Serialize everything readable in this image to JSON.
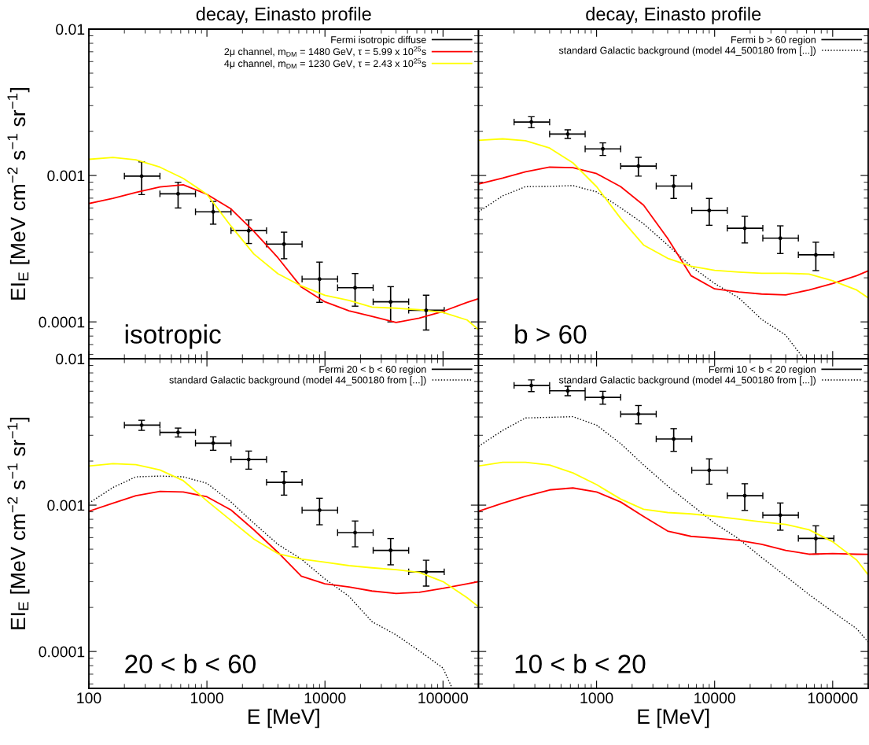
{
  "chart_data": [
    {
      "type": "line",
      "title": "decay, Einasto profile",
      "ylabel": "EI$_{E}$ [MeV cm$^{−2}$ s$^{−1}$ sr$^{−1}$]",
      "annotations": [
        "isotropic"
      ],
      "log": "xy",
      "legend": "top right",
      "tick_labels": "y",
      "xlim": [
        100,
        200000
      ],
      "ylim": [
        5.6e-05,
        0.01
      ],
      "xticks": [
        100,
        1000,
        10000,
        100000
      ],
      "yticks": [
        0.0001,
        0.001,
        0.01
      ],
      "series": [
        {
          "name": "Fermi isotropic diffuse",
          "type": "scatter",
          "color": "#000000",
          "marker": "circle",
          "x": [
            280,
            570,
            1130,
            2260,
            4500,
            9000,
            18000,
            36000,
            72000
          ],
          "values": [
            0.00099,
            0.00075,
            0.000565,
            0.00042,
            0.00034,
            0.000196,
            0.000171,
            0.000137,
            0.00012
          ],
          "errors": [
            0.00025,
            0.00015,
            0.0001,
            7.7e-05,
            7e-05,
            6e-05,
            4.3e-05,
            3.7e-05,
            3.2e-05
          ],
          "xerrors": [
            [
              200,
              400
            ],
            [
              400,
              800
            ],
            [
              800,
              1600
            ],
            [
              1600,
              3200
            ],
            [
              3200,
              6400
            ],
            [
              6400,
              12800
            ],
            [
              12800,
              25600
            ],
            [
              25600,
              51200
            ],
            [
              51200,
              102400
            ]
          ]
        },
        {
          "name": "2μ channel, m$_{DM}$ = 1480 GeV, τ = 5.99 x 10$^{25}$s",
          "color": "#ff0000",
          "x": [
            100,
            160,
            250,
            400,
            630,
            1000,
            1600,
            2500,
            4000,
            6300,
            10000,
            16000,
            25000,
            40000,
            63000,
            100000,
            160000,
            200000
          ],
          "values": [
            0.000643,
            0.000699,
            0.000766,
            0.000836,
            0.000865,
            0.000744,
            0.000591,
            0.000415,
            0.000274,
            0.000173,
            0.000137,
            0.000119,
            0.000109,
            9.9e-05,
            0.000106,
            0.000118,
            0.000136,
            0.000144
          ]
        },
        {
          "name": "4μ channel, m$_{DM}$ = 1230 GeV, τ = 2.43 x 10$^{25}$s",
          "color": "#ffff00",
          "x": [
            100,
            160,
            250,
            400,
            630,
            1000,
            1600,
            2500,
            4000,
            6300,
            10000,
            16000,
            25000,
            40000,
            63000,
            100000,
            160000,
            200000
          ],
          "values": [
            0.00129,
            0.00133,
            0.00128,
            0.00114,
            0.000955,
            0.000744,
            0.000451,
            0.000291,
            0.000213,
            0.000176,
            0.000152,
            0.00014,
            0.000126,
            0.000124,
            0.000121,
            0.000116,
            0.000103,
            8.85e-05
          ]
        }
      ]
    },
    {
      "type": "line",
      "title": "decay, Einasto profile",
      "annotations": [
        "b > 60"
      ],
      "log": "xy",
      "legend": "top right",
      "tick_labels": false,
      "xlim": [
        100,
        200000
      ],
      "ylim": [
        5.6e-05,
        0.01
      ],
      "xticks": [
        100,
        1000,
        10000,
        100000
      ],
      "yticks": [
        0.0001,
        0.001,
        0.01
      ],
      "series": [
        {
          "name": "Fermi b > 60 region",
          "type": "scatter",
          "color": "#000000",
          "marker": "circle",
          "x": [
            280,
            570,
            1130,
            2260,
            4500,
            9000,
            18000,
            36000,
            72000
          ],
          "values": [
            0.00232,
            0.00192,
            0.00152,
            0.00116,
            0.000847,
            0.000577,
            0.000436,
            0.000373,
            0.000287
          ],
          "errors": [
            0.0002,
            0.00013,
            0.00015,
            0.00017,
            0.00015,
            0.00012,
            9e-05,
            8e-05,
            6.3e-05
          ],
          "xerrors": [
            [
              200,
              400
            ],
            [
              400,
              800
            ],
            [
              800,
              1600
            ],
            [
              1600,
              3200
            ],
            [
              3200,
              6400
            ],
            [
              6400,
              12800
            ],
            [
              12800,
              25600
            ],
            [
              25600,
              51200
            ],
            [
              51200,
              102400
            ]
          ]
        },
        {
          "name": "standard Galactic background (model 44_500180 from [...])",
          "color": "#000000",
          "line_style": "dotted",
          "x": [
            100,
            160,
            250,
            400,
            630,
            1000,
            1600,
            2500,
            4000,
            6300,
            10000,
            16000,
            25000,
            40000,
            56000
          ],
          "values": [
            0.000565,
            0.000726,
            0.000839,
            0.000843,
            0.000853,
            0.000773,
            0.000601,
            0.000468,
            0.000335,
            0.00024,
            0.000183,
            0.000146,
            0.000104,
            8.11e-05,
            5.7e-05
          ]
        },
        {
          "color": "#ff0000",
          "x": [
            100,
            160,
            250,
            400,
            630,
            1000,
            1600,
            2500,
            4000,
            6300,
            10000,
            16000,
            25000,
            40000,
            63000,
            100000,
            160000,
            200000
          ],
          "values": [
            0.000875,
            0.000959,
            0.00106,
            0.00114,
            0.00113,
            0.00103,
            0.000839,
            0.000627,
            0.000372,
            0.000207,
            0.000168,
            0.00016,
            0.000155,
            0.000153,
            0.000165,
            0.000183,
            0.000207,
            0.000223
          ]
        },
        {
          "color": "#ffff00",
          "x": [
            100,
            160,
            250,
            400,
            630,
            1000,
            1600,
            2500,
            4000,
            6300,
            10000,
            16000,
            25000,
            40000,
            63000,
            100000,
            160000,
            200000
          ],
          "values": [
            0.00174,
            0.00178,
            0.00173,
            0.00154,
            0.00122,
            0.000839,
            0.000509,
            0.000335,
            0.000272,
            0.00024,
            0.000225,
            0.000219,
            0.000215,
            0.000215,
            0.000212,
            0.000191,
            0.000165,
            0.000146
          ]
        }
      ]
    },
    {
      "type": "line",
      "xlabel": "E [MeV]",
      "ylabel": "EI$_{E}$ [MeV cm$^{−2}$ s$^{−1}$ sr$^{−1}$]",
      "annotations": [
        "20 < b < 60"
      ],
      "log": "xy",
      "legend": "top right",
      "xlim": [
        100,
        200000
      ],
      "ylim": [
        5.6e-05,
        0.01
      ],
      "xticks": [
        100,
        1000,
        10000,
        100000
      ],
      "yticks": [
        0.0001,
        0.001,
        0.01
      ],
      "series": [
        {
          "name": "Fermi 20 < b < 60 region",
          "type": "scatter",
          "color": "#000000",
          "marker": "circle",
          "x": [
            280,
            570,
            1130,
            2260,
            4500,
            9000,
            18000,
            36000,
            72000
          ],
          "values": [
            0.00352,
            0.00314,
            0.00265,
            0.00205,
            0.00143,
            0.000924,
            0.000649,
            0.000491,
            0.00035
          ],
          "errors": [
            0.00028,
            0.00022,
            0.00028,
            0.00029,
            0.00026,
            0.00019,
            0.00013,
            0.0001,
            7e-05
          ],
          "xerrors": [
            [
              200,
              400
            ],
            [
              400,
              800
            ],
            [
              800,
              1600
            ],
            [
              1600,
              3200
            ],
            [
              3200,
              6400
            ],
            [
              6400,
              12800
            ],
            [
              12800,
              25600
            ],
            [
              25600,
              51200
            ],
            [
              51200,
              102400
            ]
          ]
        },
        {
          "name": "standard Galactic background (model 44_500180 from [...])",
          "color": "#000000",
          "line_style": "dotted",
          "x": [
            100,
            160,
            250,
            400,
            630,
            1000,
            1600,
            2500,
            4000,
            6300,
            10000,
            16000,
            25000,
            40000,
            63000,
            100000,
            118000
          ],
          "values": [
            0.00103,
            0.00132,
            0.00156,
            0.00158,
            0.00156,
            0.00141,
            0.00105,
            0.000753,
            0.000539,
            0.000428,
            0.000313,
            0.000238,
            0.00016,
            0.00013,
            0.000101,
            7.71e-05,
            5.75e-05
          ]
        },
        {
          "color": "#ff0000",
          "x": [
            100,
            160,
            250,
            400,
            630,
            1000,
            1600,
            2500,
            4000,
            6300,
            10000,
            16000,
            25000,
            40000,
            63000,
            100000,
            160000,
            200000
          ],
          "values": [
            0.000908,
            0.00103,
            0.00116,
            0.00124,
            0.00123,
            0.00114,
            0.000927,
            0.000678,
            0.000475,
            0.000327,
            0.00029,
            0.000276,
            0.000259,
            0.000249,
            0.000254,
            0.00027,
            0.00029,
            0.0003
          ]
        },
        {
          "color": "#ffff00",
          "x": [
            100,
            160,
            250,
            400,
            630,
            1000,
            1600,
            2500,
            4000,
            6300,
            10000,
            16000,
            25000,
            40000,
            63000,
            100000,
            160000,
            200000
          ],
          "values": [
            0.00185,
            0.00192,
            0.00189,
            0.00174,
            0.00147,
            0.00107,
            0.000785,
            0.000586,
            0.000466,
            0.000428,
            0.000407,
            0.000386,
            0.000373,
            0.000362,
            0.000347,
            0.0003,
            0.000233,
            0.000202
          ]
        }
      ]
    },
    {
      "type": "line",
      "xlabel": "E [MeV]",
      "annotations": [
        "10 < b < 20"
      ],
      "log": "xy",
      "legend": "top right",
      "tick_labels": "x",
      "xlim": [
        100,
        200000
      ],
      "ylim": [
        5.6e-05,
        0.01
      ],
      "xticks": [
        {
          "value": 100,
          "label": null
        },
        1000,
        10000,
        100000
      ],
      "yticks": [
        0.0001,
        0.001,
        0.01
      ],
      "series": [
        {
          "name": "Fermi 10 < b < 20 region",
          "type": "scatter",
          "color": "#000000",
          "marker": "circle",
          "x": [
            280,
            570,
            1130,
            2260,
            4500,
            9000,
            18000,
            36000,
            72000
          ],
          "values": [
            0.00657,
            0.00604,
            0.00544,
            0.00419,
            0.00283,
            0.00173,
            0.00116,
            0.000854,
            0.000592
          ],
          "errors": [
            0.0006,
            0.00045,
            0.00055,
            0.0006,
            0.0005,
            0.00034,
            0.00024,
            0.00018,
            0.00013
          ],
          "xerrors": [
            [
              200,
              400
            ],
            [
              400,
              800
            ],
            [
              800,
              1600
            ],
            [
              1600,
              3200
            ],
            [
              3200,
              6400
            ],
            [
              6400,
              12800
            ],
            [
              12800,
              25600
            ],
            [
              25600,
              51200
            ],
            [
              51200,
              102400
            ]
          ]
        },
        {
          "name": "standard Galactic background (model 44_500180 from [...])",
          "color": "#000000",
          "line_style": "dotted",
          "x": [
            100,
            160,
            250,
            400,
            630,
            1000,
            1600,
            2500,
            4000,
            6300,
            10000,
            16000,
            25000,
            40000,
            63000,
            100000,
            160000,
            200000
          ],
          "values": [
            0.00252,
            0.00324,
            0.00394,
            0.00398,
            0.00402,
            0.00352,
            0.00263,
            0.00188,
            0.00135,
            0.00101,
            0.000753,
            0.000588,
            0.000439,
            0.000327,
            0.000245,
            0.000187,
            0.000143,
            0.000116
          ]
        },
        {
          "color": "#ff0000",
          "x": [
            100,
            160,
            250,
            400,
            630,
            1000,
            1600,
            2500,
            4000,
            6300,
            10000,
            16000,
            25000,
            40000,
            63000,
            100000,
            160000,
            200000
          ],
          "values": [
            0.000908,
            0.00103,
            0.00115,
            0.00127,
            0.00131,
            0.00123,
            0.00105,
            0.000836,
            0.000665,
            0.000612,
            0.000594,
            0.000574,
            0.00054,
            0.000491,
            0.000462,
            0.000467,
            0.000462,
            0.000461
          ]
        },
        {
          "color": "#ffff00",
          "x": [
            100,
            160,
            250,
            400,
            630,
            1000,
            1600,
            2500,
            4000,
            6300,
            10000,
            16000,
            25000,
            40000,
            63000,
            100000,
            160000,
            200000
          ],
          "values": [
            0.00185,
            0.00196,
            0.00196,
            0.00188,
            0.00166,
            0.00138,
            0.0011,
            0.000936,
            0.00089,
            0.000871,
            0.000839,
            0.000802,
            0.000769,
            0.000738,
            0.000679,
            0.000562,
            0.000421,
            0.000334
          ]
        }
      ]
    }
  ]
}
